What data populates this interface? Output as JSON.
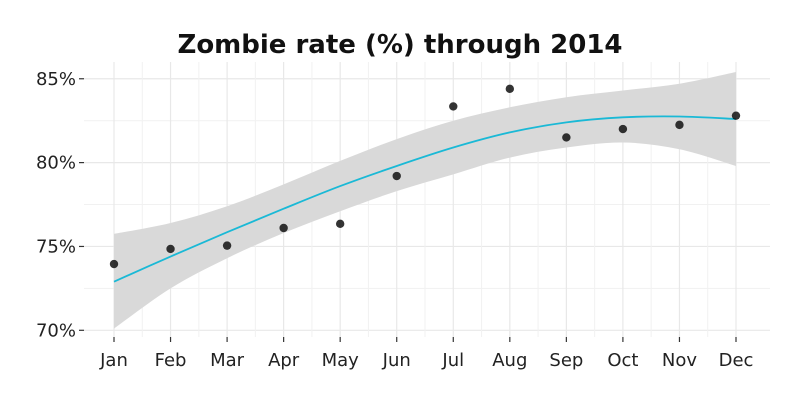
{
  "chart_data": {
    "type": "scatter",
    "title": "Zombie rate (%) through 2014",
    "xlabel": "",
    "ylabel": "",
    "categories": [
      "Jan",
      "Feb",
      "Mar",
      "Apr",
      "May",
      "Jun",
      "Jul",
      "Aug",
      "Sep",
      "Oct",
      "Nov",
      "Dec"
    ],
    "ylim": [
      69.6,
      86.0
    ],
    "y_ticks": [
      70,
      75,
      80,
      85
    ],
    "y_tick_labels": [
      "70%",
      "75%",
      "80%",
      "85%"
    ],
    "grid": true,
    "series": [
      {
        "kind": "points",
        "values": [
          73.95,
          74.85,
          75.05,
          76.1,
          76.35,
          79.2,
          83.35,
          84.4,
          81.5,
          82.0,
          82.25,
          82.8
        ]
      },
      {
        "kind": "smooth-fit",
        "values": [
          72.9,
          74.4,
          75.85,
          77.25,
          78.6,
          79.8,
          80.9,
          81.8,
          82.4,
          82.7,
          82.75,
          82.6
        ],
        "ci_lower": [
          70.1,
          72.5,
          74.3,
          75.8,
          77.1,
          78.3,
          79.3,
          80.3,
          80.9,
          81.2,
          80.8,
          79.8
        ],
        "ci_upper": [
          75.75,
          76.4,
          77.4,
          78.7,
          80.1,
          81.4,
          82.5,
          83.3,
          83.9,
          84.3,
          84.7,
          85.4
        ]
      }
    ],
    "colors": {
      "points": "#111111",
      "fit_line": "#1ab9d6",
      "ci_band": "#d9d9d9",
      "grid": "#e8e8e8"
    }
  }
}
